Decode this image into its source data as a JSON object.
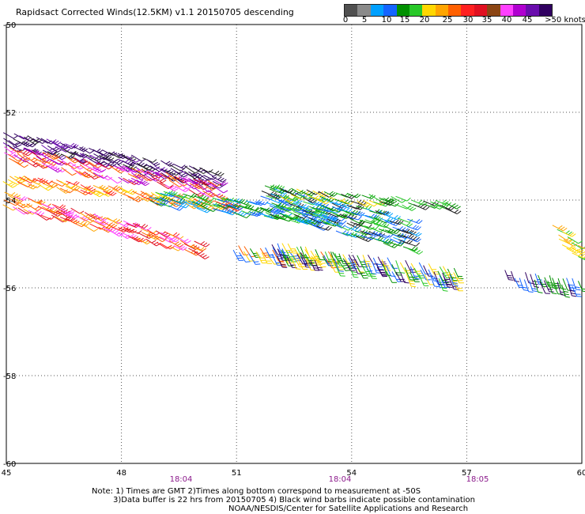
{
  "title": "Rapidsact Corrected Winds(12.5KM) v1.1 20150705 descending",
  "colorbar": {
    "colors": [
      "#505050",
      "#8a8a8a",
      "#00a0ff",
      "#1464ff",
      "#009000",
      "#28c828",
      "#ffd700",
      "#ffa500",
      "#ff6000",
      "#ff2020",
      "#e01020",
      "#8b4513",
      "#ff40ff",
      "#b000d0",
      "#6a0dad",
      "#300060"
    ],
    "labels": [
      "0",
      "5",
      "10",
      "15",
      "20",
      "25",
      "30",
      "35",
      "40",
      "45",
      ">50 knots"
    ]
  },
  "axes": {
    "x_ticks": [
      "45",
      "48",
      "51",
      "54",
      "57",
      "60"
    ],
    "y_ticks": [
      "-50",
      "-52",
      "-54",
      "-56",
      "-58",
      "-60"
    ]
  },
  "times": [
    "18:04",
    "18:04",
    "18:05"
  ],
  "notes": {
    "line1": "Note: 1) Times are GMT 2)Times along bottom correspond to measurement at -50S",
    "line2": "3)Data buffer is 22 hrs from 20150705 4) Black wind barbs indicate possible contamination",
    "line3": "NOAA/NESDIS/Center for Satellite Applications and Research"
  }
}
